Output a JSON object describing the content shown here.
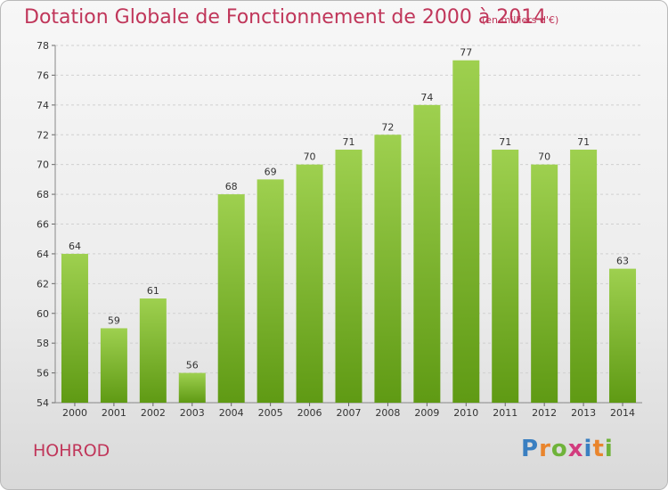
{
  "header": {
    "title": "Dotation Globale de Fonctionnement de 2000 à 2014",
    "subtitle": "(en milliers d'€)"
  },
  "footer": {
    "commune": "HOHROD",
    "logo": [
      "P",
      "r",
      "o",
      "x",
      "i",
      "t",
      "i"
    ]
  },
  "colors": {
    "title": "#c0365a",
    "bar_top": "#9ed04f",
    "bar_bottom": "#5f9a14",
    "grid": "#d0d0d0"
  },
  "chart_data": {
    "type": "bar",
    "title": "Dotation Globale de Fonctionnement de 2000 à 2014",
    "subtitle": "(en milliers d'€)",
    "categories": [
      "2000",
      "2001",
      "2002",
      "2003",
      "2004",
      "2005",
      "2006",
      "2007",
      "2008",
      "2009",
      "2010",
      "2011",
      "2012",
      "2013",
      "2014"
    ],
    "values": [
      64,
      59,
      61,
      56,
      68,
      69,
      70,
      71,
      72,
      74,
      77,
      71,
      70,
      71,
      63
    ],
    "ylim": [
      54,
      78
    ],
    "yticks": [
      54,
      56,
      58,
      60,
      62,
      64,
      66,
      68,
      70,
      72,
      74,
      76,
      78
    ],
    "grid": true,
    "legend": "none",
    "xlabel": "",
    "ylabel": ""
  }
}
